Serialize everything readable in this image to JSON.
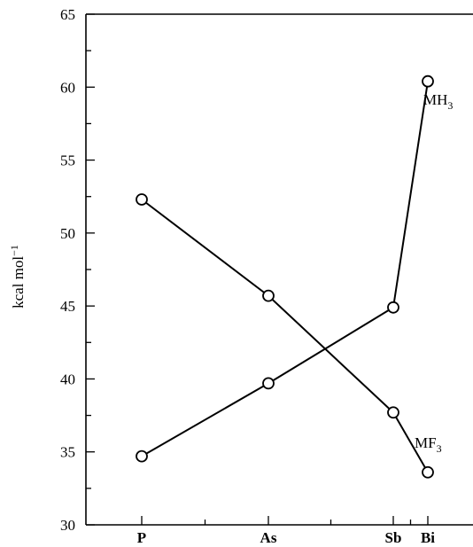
{
  "chart_data": {
    "type": "line",
    "categories": [
      "P",
      "As",
      "Sb",
      "Bi"
    ],
    "ylabel": "kcal mol",
    "ylabel_superscript": "−1",
    "ylim": [
      30,
      65
    ],
    "yticks": [
      "30",
      "35",
      "40",
      "45",
      "50",
      "55",
      "60",
      "65"
    ],
    "grid": false,
    "series": [
      {
        "name": "MH",
        "name_subscript": "3",
        "values": [
          34.7,
          39.7,
          44.9,
          60.4
        ],
        "color": "#000000",
        "marker": "open-circle"
      },
      {
        "name": "MF",
        "name_subscript": "3",
        "values": [
          52.3,
          45.7,
          37.7,
          33.6
        ],
        "color": "#000000",
        "marker": "open-circle"
      }
    ]
  }
}
